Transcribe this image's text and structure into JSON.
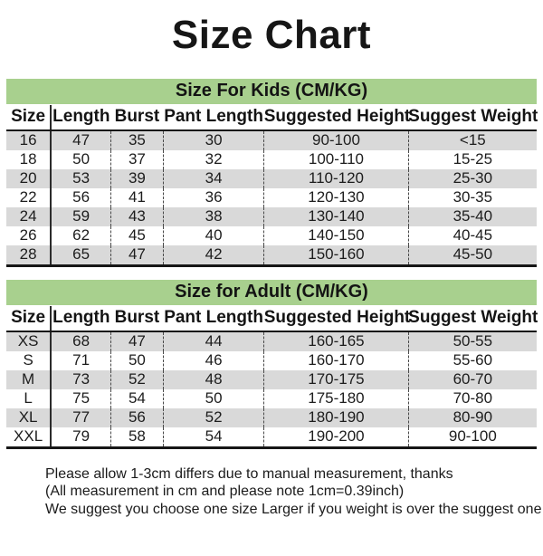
{
  "title": "Size Chart",
  "colors": {
    "section_header_green": "#a8d08e",
    "row_stripe_gray": "#d9d9d9",
    "rule_black": "#161616"
  },
  "tables": [
    {
      "section_title": "Size For Kids （CM/KG）",
      "columns": [
        "Size",
        "Length",
        "Burst",
        "Pant Length",
        "Suggested Height",
        "Suggest Weight"
      ],
      "rows": [
        [
          "16",
          "47",
          "35",
          "30",
          "90-100",
          "<15"
        ],
        [
          "18",
          "50",
          "37",
          "32",
          "100-110",
          "15-25"
        ],
        [
          "20",
          "53",
          "39",
          "34",
          "110-120",
          "25-30"
        ],
        [
          "22",
          "56",
          "41",
          "36",
          "120-130",
          "30-35"
        ],
        [
          "24",
          "59",
          "43",
          "38",
          "130-140",
          "35-40"
        ],
        [
          "26",
          "62",
          "45",
          "40",
          "140-150",
          "40-45"
        ],
        [
          "28",
          "65",
          "47",
          "42",
          "150-160",
          "45-50"
        ]
      ]
    },
    {
      "section_title": "Size for Adult （CM/KG）",
      "columns": [
        "Size",
        "Length",
        "Burst",
        "Pant Length",
        "Suggested Height",
        "Suggest Weight"
      ],
      "rows": [
        [
          "XS",
          "68",
          "47",
          "44",
          "160-165",
          "50-55"
        ],
        [
          "S",
          "71",
          "50",
          "46",
          "160-170",
          "55-60"
        ],
        [
          "M",
          "73",
          "52",
          "48",
          "170-175",
          "60-70"
        ],
        [
          "L",
          "75",
          "54",
          "50",
          "175-180",
          "70-80"
        ],
        [
          "XL",
          "77",
          "56",
          "52",
          "180-190",
          "80-90"
        ],
        [
          "XXL",
          "79",
          "58",
          "54",
          "190-200",
          "90-100"
        ]
      ]
    }
  ],
  "notes": [
    "Please allow 1-3cm differs due to manual measurement, thanks",
    "(All measurement in cm and please note 1cm=0.39inch)",
    "We suggest you choose one size Larger if you weight is over the suggest one"
  ]
}
